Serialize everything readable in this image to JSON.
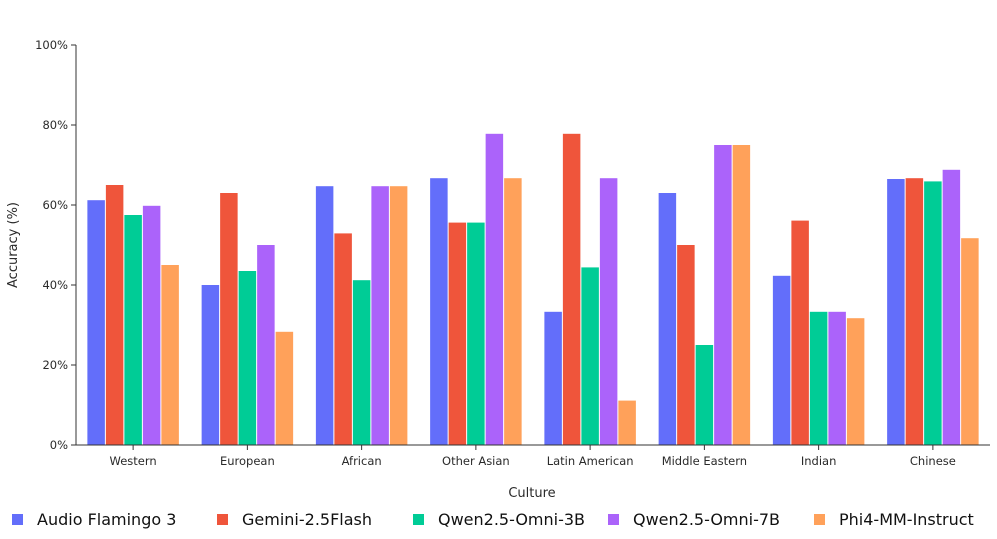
{
  "chart_data": {
    "type": "bar",
    "title": "",
    "xlabel": "Culture",
    "ylabel": "Accuracy (%)",
    "ylim": [
      0,
      100
    ],
    "yticks": [
      "0%",
      "20%",
      "40%",
      "60%",
      "80%",
      "100%"
    ],
    "grid": false,
    "legend_position": "bottom",
    "categories": [
      "Western",
      "European",
      "African",
      "Other Asian",
      "Latin American",
      "Middle Eastern",
      "Indian",
      "Chinese"
    ],
    "series": [
      {
        "name": "Audio Flamingo 3",
        "color": "#636efa",
        "values": [
          61.2,
          40.0,
          64.7,
          66.7,
          33.3,
          63.0,
          42.3,
          66.5
        ]
      },
      {
        "name": "Gemini-2.5Flash",
        "color": "#ef553b",
        "values": [
          65.0,
          63.0,
          52.9,
          55.6,
          77.8,
          50.0,
          56.1,
          66.7
        ]
      },
      {
        "name": "Qwen2.5-Omni-3B",
        "color": "#00cc96",
        "values": [
          57.5,
          43.5,
          41.2,
          55.6,
          44.4,
          25.0,
          33.3,
          65.9
        ]
      },
      {
        "name": "Qwen2.5-Omni-7B",
        "color": "#ab63fa",
        "values": [
          59.8,
          50.0,
          64.7,
          77.8,
          66.7,
          75.0,
          33.3,
          68.8
        ]
      },
      {
        "name": "Phi4-MM-Instruct",
        "color": "#ffa15a",
        "values": [
          45.0,
          28.3,
          64.7,
          66.7,
          11.1,
          75.0,
          31.7,
          51.7
        ]
      }
    ]
  }
}
